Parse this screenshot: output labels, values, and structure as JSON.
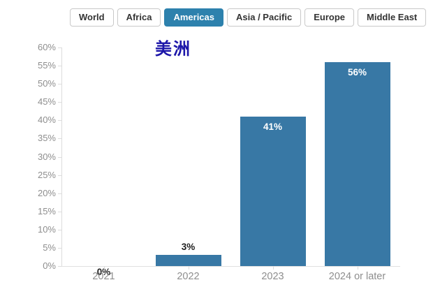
{
  "tabs": [
    {
      "label": "World",
      "selected": false
    },
    {
      "label": "Africa",
      "selected": false
    },
    {
      "label": "Americas",
      "selected": true
    },
    {
      "label": "Asia / Pacific",
      "selected": false
    },
    {
      "label": "Europe",
      "selected": false
    },
    {
      "label": "Middle East",
      "selected": false
    }
  ],
  "title": {
    "text": "美洲",
    "color": "#1c16a9"
  },
  "chart_data": {
    "type": "bar",
    "categories": [
      "2021",
      "2022",
      "2023",
      "2024 or later"
    ],
    "values": [
      0,
      3,
      41,
      56
    ],
    "data_labels": [
      "0%",
      "3%",
      "41%",
      "56%"
    ],
    "title": "美洲",
    "xlabel": "",
    "ylabel": "",
    "ylim": [
      0,
      60
    ],
    "ytick_step": 5,
    "ytick_suffix": "%",
    "grid": false,
    "legend": "none",
    "bar_color": "#3878a5",
    "data_label_color_inside": "#ffffff",
    "data_label_color_outside": "#1f1f1f"
  },
  "colors": {
    "tab_selected_bg": "#2d81ad",
    "tab_border": "#c9c9c9",
    "tab_text": "#333333",
    "axis_line": "#dcdcdc",
    "tick_label": "#8e8e8e"
  }
}
